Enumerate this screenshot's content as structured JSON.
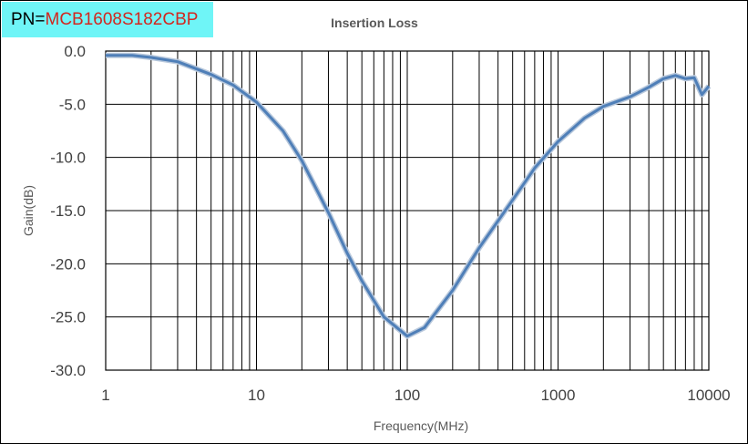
{
  "header": {
    "pn_prefix": "PN=",
    "pn_value": "MCB1608S182CBP"
  },
  "chart_data": {
    "type": "line",
    "title": "Insertion Loss",
    "xlabel": "Frequency(MHz)",
    "ylabel": "Gain(dB)",
    "xscale": "log",
    "xlim": [
      1,
      10000
    ],
    "ylim": [
      -30,
      0
    ],
    "xticks": [
      "1",
      "10",
      "100",
      "1000",
      "10000"
    ],
    "yticks": [
      "0.0",
      "-5.0",
      "-10.0",
      "-15.0",
      "-20.0",
      "-25.0",
      "-30.0"
    ],
    "grid": true,
    "series": [
      {
        "name": "Insertion Loss",
        "color": "#4f7fb8",
        "x": [
          1,
          1.5,
          2,
          3,
          5,
          7,
          10,
          15,
          20,
          30,
          40,
          50,
          70,
          100,
          130,
          200,
          300,
          500,
          700,
          1000,
          1500,
          2000,
          3000,
          4000,
          5000,
          6000,
          7000,
          8000,
          9000,
          10000
        ],
        "y": [
          -0.4,
          -0.4,
          -0.6,
          -1.0,
          -2.2,
          -3.2,
          -4.8,
          -7.5,
          -10.3,
          -15.2,
          -19,
          -21.6,
          -25,
          -26.8,
          -26,
          -22.5,
          -18.5,
          -14,
          -11,
          -8.5,
          -6.3,
          -5.2,
          -4.3,
          -3.4,
          -2.6,
          -2.3,
          -2.6,
          -2.5,
          -4.1,
          -3.3
        ]
      }
    ]
  }
}
